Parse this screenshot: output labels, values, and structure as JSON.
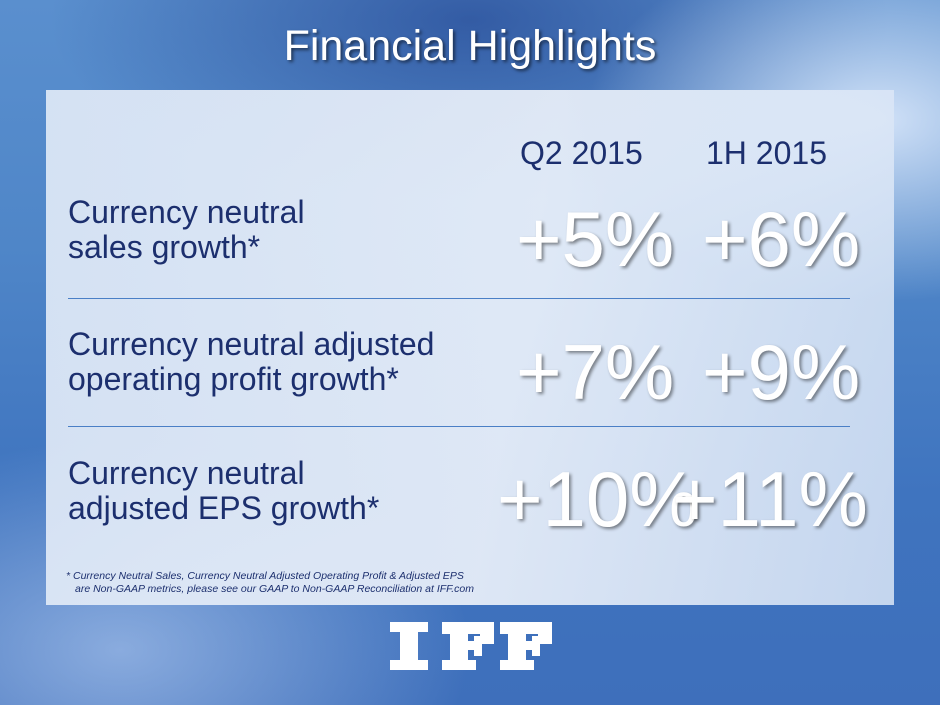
{
  "title": "Financial Highlights",
  "columns": [
    "Q2 2015",
    "1H 2015"
  ],
  "rows": [
    {
      "label_lines": [
        "Currency neutral",
        "sales growth*"
      ],
      "q2": "+5%",
      "h1": "+6%"
    },
    {
      "label_lines": [
        "Currency neutral adjusted",
        "operating profit growth*"
      ],
      "q2": "+7%",
      "h1": "+9%"
    },
    {
      "label_lines": [
        "Currency neutral",
        "adjusted EPS growth*"
      ],
      "q2": "+10%",
      "h1": "+11%"
    }
  ],
  "footnote_lines": [
    "* Currency Neutral Sales, Currency Neutral Adjusted Operating Profit & Adjusted EPS",
    "are Non-GAAP metrics, please see our GAAP to Non-GAAP Reconciliation at IFF.com"
  ],
  "logo": "IFF",
  "colors": {
    "label_text": "#1c2f6e",
    "divider": "#4a7fc6",
    "logo": "#ffffff"
  }
}
